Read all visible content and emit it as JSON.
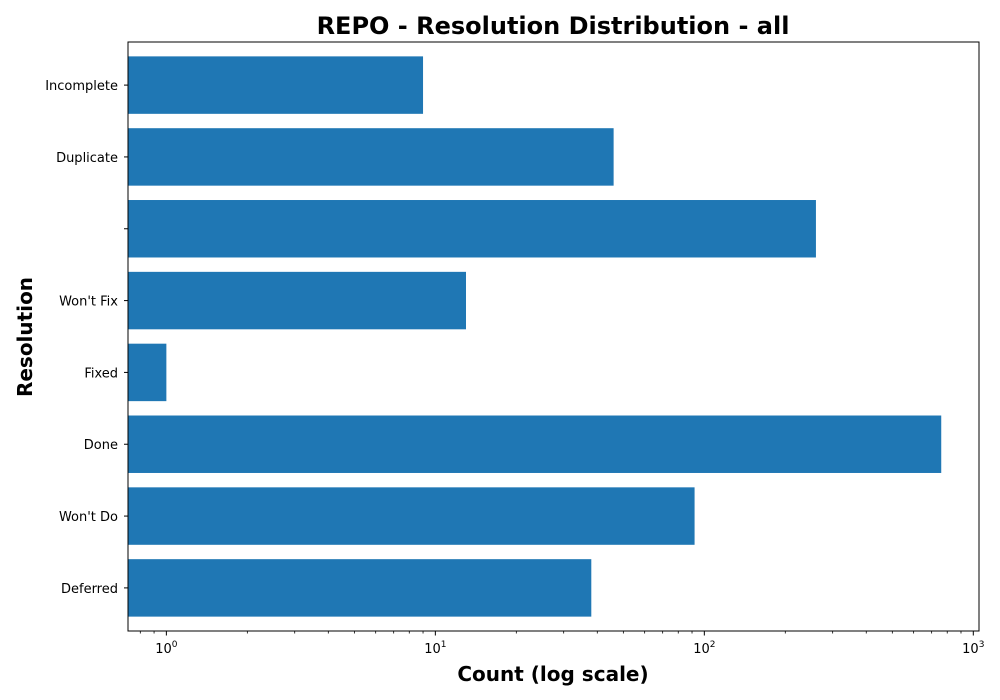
{
  "chart_data": {
    "type": "bar",
    "orientation": "horizontal",
    "title": "REPO - Resolution Distribution - all",
    "xlabel": "Count (log scale)",
    "ylabel": "Resolution",
    "x_scale": "log",
    "xlim": [
      0.72,
      1050
    ],
    "x_ticks": [
      {
        "value": 1,
        "base": "10",
        "exp": "0"
      },
      {
        "value": 10,
        "base": "10",
        "exp": "1"
      },
      {
        "value": 100,
        "base": "10",
        "exp": "2"
      },
      {
        "value": 1000,
        "base": "10",
        "exp": "3"
      }
    ],
    "categories": [
      "Deferred",
      "Won't Do",
      "Done",
      "Fixed",
      "Won't Fix",
      "",
      "Duplicate",
      "Incomplete"
    ],
    "values": [
      38,
      92,
      760,
      1,
      13,
      260,
      46,
      9
    ],
    "bar_color": "#1f77b4",
    "grid": false,
    "legend": false
  }
}
